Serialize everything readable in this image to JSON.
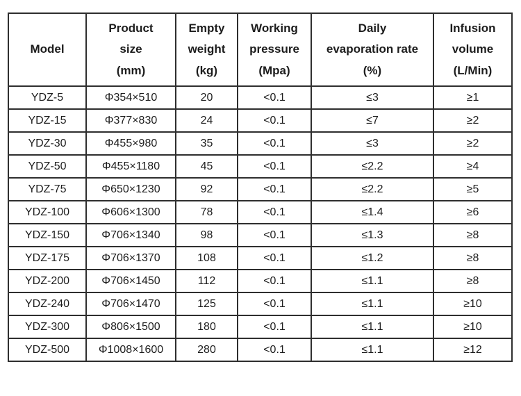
{
  "page": {
    "background_color": "#ffffff",
    "text_color": "#1d1d1d",
    "border_color": "#2e2e2e"
  },
  "table": {
    "headers": [
      "Model",
      "Product\nsize\n(mm)",
      "Empty\nweight\n(kg)",
      "Working\npressure\n(Mpa)",
      "Daily\nevaporation rate\n(%)",
      "Infusion\nvolume\n(L/Min)"
    ],
    "column_keys": [
      "model",
      "product-size",
      "empty-weight",
      "working-pressure",
      "evaporation-rate",
      "infusion-volume"
    ],
    "rows": [
      [
        "YDZ-5",
        "Φ354×510",
        "20",
        "<0.1",
        "≤3",
        "≥1"
      ],
      [
        "YDZ-15",
        "Φ377×830",
        "24",
        "<0.1",
        "≤7",
        "≥2"
      ],
      [
        "YDZ-30",
        "Φ455×980",
        "35",
        "<0.1",
        "≤3",
        "≥2"
      ],
      [
        "YDZ-50",
        "Φ455×1180",
        "45",
        "<0.1",
        "≤2.2",
        "≥4"
      ],
      [
        "YDZ-75",
        "Φ650×1230",
        "92",
        "<0.1",
        "≤2.2",
        "≥5"
      ],
      [
        "YDZ-100",
        "Φ606×1300",
        "78",
        "<0.1",
        "≤1.4",
        "≥6"
      ],
      [
        "YDZ-150",
        "Φ706×1340",
        "98",
        "<0.1",
        "≤1.3",
        "≥8"
      ],
      [
        "YDZ-175",
        "Φ706×1370",
        "108",
        "<0.1",
        "≤1.2",
        "≥8"
      ],
      [
        "YDZ-200",
        "Φ706×1450",
        "112",
        "<0.1",
        "≤1.1",
        "≥8"
      ],
      [
        "YDZ-240",
        "Φ706×1470",
        "125",
        "<0.1",
        "≤1.1",
        "≥10"
      ],
      [
        "YDZ-300",
        "Φ806×1500",
        "180",
        "<0.1",
        "≤1.1",
        "≥10"
      ],
      [
        "YDZ-500",
        "Φ1008×1600",
        "280",
        "<0.1",
        "≤1.1",
        "≥12"
      ]
    ]
  }
}
